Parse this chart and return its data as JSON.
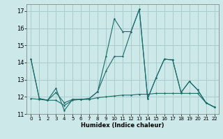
{
  "xlabel": "Humidex (Indice chaleur)",
  "background_color": "#cce8e8",
  "grid_color": "#aacccc",
  "line_color": "#1a6b6b",
  "xlim": [
    -0.5,
    22.5
  ],
  "ylim": [
    11.0,
    17.4
  ],
  "yticks": [
    11,
    12,
    13,
    14,
    15,
    16,
    17
  ],
  "xticks": [
    0,
    1,
    2,
    3,
    4,
    5,
    6,
    7,
    8,
    9,
    10,
    11,
    12,
    13,
    14,
    15,
    16,
    17,
    18,
    19,
    20,
    21,
    22
  ],
  "series1_x": [
    0,
    1,
    2,
    3,
    4,
    5,
    6,
    7,
    8,
    9,
    10,
    11,
    12,
    13,
    14,
    15,
    16,
    17,
    18,
    19,
    20,
    21,
    22
  ],
  "series1_y": [
    14.2,
    11.9,
    11.8,
    12.5,
    11.2,
    11.85,
    11.85,
    11.9,
    12.3,
    14.35,
    16.55,
    15.8,
    15.8,
    17.1,
    11.9,
    13.1,
    14.2,
    14.15,
    12.25,
    12.9,
    12.4,
    11.65,
    11.4
  ],
  "series2_x": [
    0,
    1,
    2,
    3,
    4,
    5,
    6,
    7,
    8,
    9,
    10,
    11,
    12,
    13,
    14,
    15,
    16,
    17,
    18,
    19,
    20,
    21,
    22
  ],
  "series2_y": [
    11.9,
    11.85,
    11.8,
    11.8,
    11.5,
    11.8,
    11.85,
    11.85,
    11.95,
    12.0,
    12.05,
    12.1,
    12.1,
    12.15,
    12.15,
    12.2,
    12.2,
    12.2,
    12.2,
    12.2,
    12.2,
    11.65,
    11.4
  ],
  "series3_x": [
    0,
    1,
    2,
    3,
    4,
    5,
    6,
    7,
    8,
    9,
    10,
    11,
    12,
    13,
    14,
    15,
    16,
    17,
    18,
    19,
    20,
    21,
    22
  ],
  "series3_y": [
    14.2,
    11.9,
    11.8,
    12.25,
    11.65,
    11.85,
    11.85,
    11.9,
    12.3,
    13.5,
    14.35,
    14.35,
    15.8,
    17.1,
    11.9,
    13.1,
    14.2,
    14.15,
    12.25,
    12.9,
    12.4,
    11.65,
    11.4
  ]
}
